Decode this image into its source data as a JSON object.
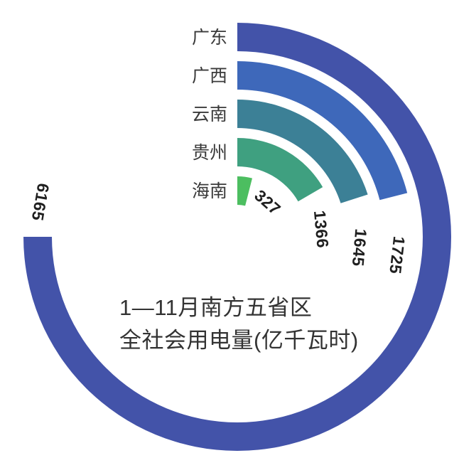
{
  "chart_data": {
    "type": "bar",
    "variant": "radial-polar-bars",
    "title": "1—11月南方五省区全社会用电量(亿千瓦时)",
    "title_lines": [
      "1—11月南方五省区",
      "全社会用电量(亿千瓦时)"
    ],
    "unit": "亿千瓦时",
    "categories": [
      "广东",
      "广西",
      "云南",
      "贵州",
      "海南"
    ],
    "keys": [
      "guangdong",
      "guangxi",
      "yunnan",
      "guizhou",
      "hainan"
    ],
    "values": [
      6165,
      1725,
      1645,
      1366,
      327
    ],
    "colors": [
      "#4353A9",
      "#3E68BA",
      "#3C8096",
      "#3FA080",
      "#4CBE60"
    ],
    "angle_start_deg": 0,
    "angle_max_deg": 270,
    "value_at_max_angle": 6165,
    "direction": "clockwise",
    "grid": false,
    "legend": false,
    "category_label_color": "#3a3a3a",
    "value_label_color": "#1f1f1f",
    "title_color": "#333333",
    "background": "#ffffff"
  }
}
